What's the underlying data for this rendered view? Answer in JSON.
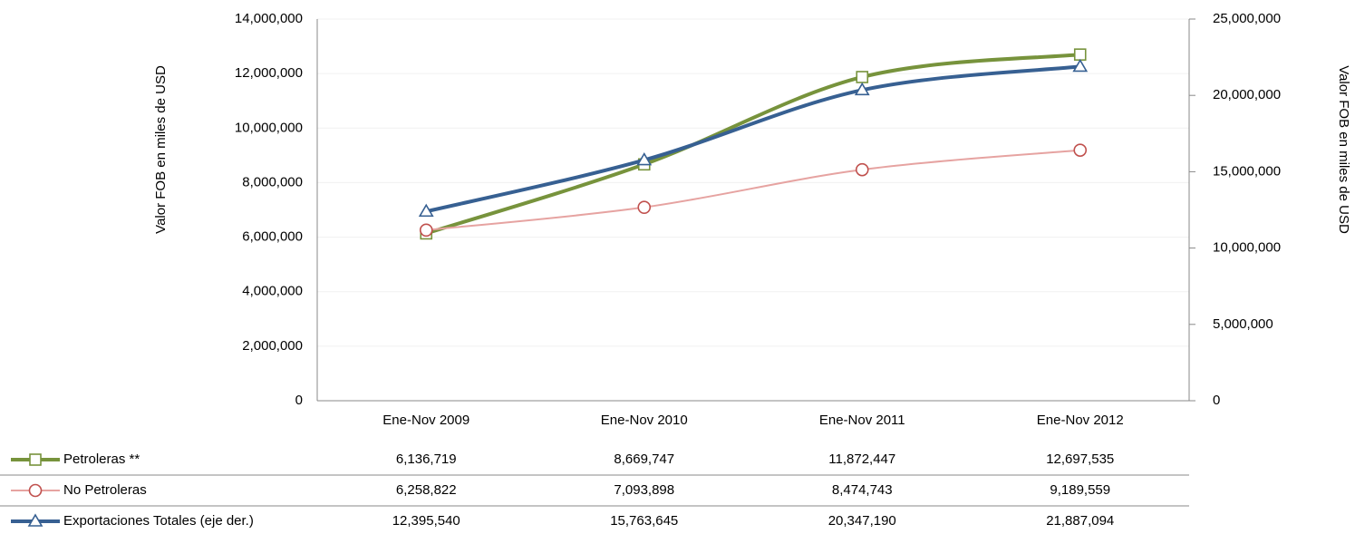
{
  "chart_data": {
    "type": "line",
    "y_label": "Valor FOB  en miles de USD",
    "y2_label": "Valor FOB en miles de USD",
    "categories": [
      "Ene-Nov 2009",
      "Ene-Nov 2010",
      "Ene-Nov 2011",
      "Ene-Nov 2012"
    ],
    "series": [
      {
        "name": "Petroleras  **",
        "color": "#77933c",
        "marker": "square",
        "marker_color": "#77933c",
        "line_width": 4,
        "values": [
          6136719,
          8669747,
          11872447,
          12697535
        ],
        "value_labels": [
          "6,136,719",
          "8,669,747",
          "11,872,447",
          "12,697,535"
        ]
      },
      {
        "name": "No Petroleras",
        "color": "#e6a3a1",
        "marker": "circle",
        "marker_color": "#c0504d",
        "line_width": 2,
        "values": [
          6258822,
          7093898,
          8474743,
          9189559
        ],
        "value_labels": [
          "6,258,822",
          "7,093,898",
          "8,474,743",
          "9,189,559"
        ]
      },
      {
        "name": "Exportaciones Totales (eje der.)",
        "color": "#376092",
        "marker": "triangle",
        "marker_color": "#376092",
        "line_width": 4,
        "axis": "y2",
        "values": [
          12395540,
          15763645,
          20347190,
          21887094
        ],
        "value_labels": [
          "12,395,540",
          "15,763,645",
          "20,347,190",
          "21,887,094"
        ]
      }
    ],
    "ylim": [
      0,
      14000000
    ],
    "yticks": [
      0,
      {
        "value": 2000000,
        "label": "2,000,000"
      },
      {
        "value": 4000000,
        "label": "4,000,000"
      },
      {
        "value": 6000000,
        "label": "6,000,000"
      },
      {
        "value": 8000000,
        "label": "8,000,000"
      },
      {
        "value": 10000000,
        "label": "10,000,000"
      },
      {
        "value": 12000000,
        "label": "12,000,000"
      },
      {
        "value": 14000000,
        "label": "14,000,000"
      }
    ],
    "y2lim": [
      0,
      25000000
    ],
    "y2ticks": [
      0,
      {
        "value": 5000000,
        "label": "5,000,000"
      },
      {
        "value": 10000000,
        "label": "10,000,000"
      },
      {
        "value": 15000000,
        "label": "15,000,000"
      },
      {
        "value": 20000000,
        "label": "20,000,000"
      },
      {
        "value": 25000000,
        "label": "25,000,000"
      }
    ],
    "grid": true,
    "smooth": true
  }
}
